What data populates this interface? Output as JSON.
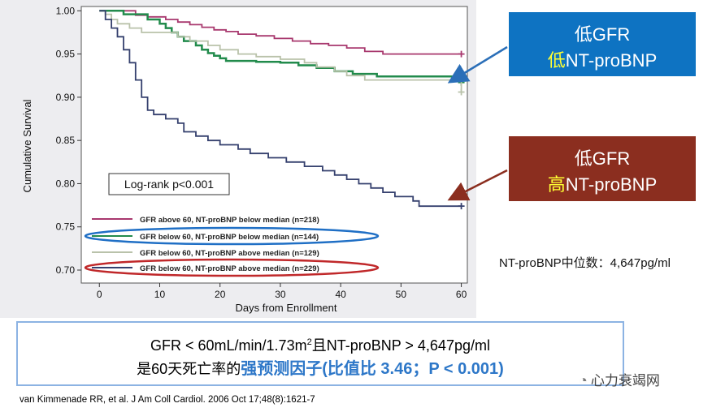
{
  "chart_data": {
    "type": "line",
    "title": "",
    "xlabel": "Days from Enrollment",
    "ylabel": "Cumulative Survival",
    "xlim": [
      -3,
      61
    ],
    "ylim": [
      0.685,
      1.005
    ],
    "x_ticks": [
      0,
      10,
      20,
      30,
      40,
      50,
      60
    ],
    "y_ticks": [
      0.7,
      0.75,
      0.8,
      0.85,
      0.9,
      0.95,
      1.0
    ],
    "x_tick_labels": [
      "0",
      "10",
      "20",
      "30",
      "40",
      "50",
      "60"
    ],
    "y_tick_labels": [
      "0.70",
      "0.75",
      "0.80",
      "0.85",
      "0.90",
      "0.95",
      "1.00"
    ],
    "grid": false,
    "legend_position": "bottom-left",
    "annotation": "Log-rank p<0.001",
    "series": [
      {
        "name": "GFR above 60, NT-proBNP below median (n=218)",
        "color": "#a8386e",
        "points": [
          [
            0,
            1.0
          ],
          [
            3,
            1.0
          ],
          [
            6,
            0.995
          ],
          [
            8,
            0.993
          ],
          [
            11,
            0.99
          ],
          [
            13,
            0.987
          ],
          [
            15,
            0.984
          ],
          [
            17,
            0.981
          ],
          [
            19,
            0.978
          ],
          [
            21,
            0.976
          ],
          [
            23,
            0.973
          ],
          [
            26,
            0.971
          ],
          [
            29,
            0.968
          ],
          [
            32,
            0.965
          ],
          [
            35,
            0.962
          ],
          [
            38,
            0.96
          ],
          [
            41,
            0.957
          ],
          [
            44,
            0.953
          ],
          [
            47,
            0.95
          ],
          [
            52,
            0.95
          ],
          [
            60,
            0.95
          ]
        ]
      },
      {
        "name": "GFR below 60, NT-proBNP below median (n=144)",
        "color": "#228b4c",
        "points": [
          [
            0,
            1.0
          ],
          [
            4,
            0.996
          ],
          [
            8,
            0.99
          ],
          [
            10,
            0.985
          ],
          [
            11,
            0.98
          ],
          [
            12,
            0.975
          ],
          [
            13,
            0.97
          ],
          [
            14,
            0.965
          ],
          [
            16,
            0.96
          ],
          [
            17,
            0.955
          ],
          [
            18,
            0.951
          ],
          [
            19,
            0.948
          ],
          [
            20,
            0.945
          ],
          [
            21,
            0.942
          ],
          [
            26,
            0.941
          ],
          [
            30,
            0.94
          ],
          [
            33,
            0.937
          ],
          [
            36,
            0.934
          ],
          [
            39,
            0.93
          ],
          [
            42,
            0.927
          ],
          [
            46,
            0.924
          ],
          [
            58,
            0.924
          ],
          [
            60,
            0.917
          ]
        ]
      },
      {
        "name": "GFR below 60, NT-proBNP above median (n=129)",
        "color": "#b9c2aa",
        "points": [
          [
            0,
            1.0
          ],
          [
            1,
            0.996
          ],
          [
            2,
            0.99
          ],
          [
            3,
            0.985
          ],
          [
            5,
            0.98
          ],
          [
            7,
            0.975
          ],
          [
            11,
            0.975
          ],
          [
            13,
            0.97
          ],
          [
            15,
            0.965
          ],
          [
            18,
            0.96
          ],
          [
            20,
            0.955
          ],
          [
            23,
            0.95
          ],
          [
            26,
            0.947
          ],
          [
            30,
            0.944
          ],
          [
            34,
            0.94
          ],
          [
            36,
            0.935
          ],
          [
            39,
            0.93
          ],
          [
            41,
            0.925
          ],
          [
            44,
            0.92
          ],
          [
            57,
            0.92
          ],
          [
            60,
            0.906
          ]
        ]
      },
      {
        "name": "GFR below 60, NT-proBNP above median (n=229)",
        "color": "#35406e",
        "points": [
          [
            0,
            1.0
          ],
          [
            1,
            0.99
          ],
          [
            2,
            0.98
          ],
          [
            3,
            0.97
          ],
          [
            4,
            0.955
          ],
          [
            5,
            0.94
          ],
          [
            6,
            0.92
          ],
          [
            7,
            0.9
          ],
          [
            8,
            0.885
          ],
          [
            9,
            0.88
          ],
          [
            11,
            0.875
          ],
          [
            13,
            0.87
          ],
          [
            14,
            0.86
          ],
          [
            16,
            0.855
          ],
          [
            18,
            0.85
          ],
          [
            20,
            0.845
          ],
          [
            23,
            0.84
          ],
          [
            25,
            0.835
          ],
          [
            28,
            0.83
          ],
          [
            31,
            0.825
          ],
          [
            34,
            0.82
          ],
          [
            37,
            0.815
          ],
          [
            39,
            0.81
          ],
          [
            41,
            0.805
          ],
          [
            43,
            0.8
          ],
          [
            45,
            0.795
          ],
          [
            47,
            0.79
          ],
          [
            49,
            0.785
          ],
          [
            52,
            0.78
          ],
          [
            53,
            0.774
          ],
          [
            58,
            0.774
          ],
          [
            60,
            0.774
          ]
        ]
      }
    ]
  },
  "callouts": {
    "low": {
      "line1": "低GFR",
      "prefix": "低",
      "suffix": "NT-proBNP"
    },
    "high": {
      "line1": "低GFR",
      "prefix": "高",
      "suffix": "NT-proBNP"
    }
  },
  "median_note": "NT-proBNP中位数：4,647pg/ml",
  "summary": {
    "line1_part1": "GFR < 60mL/min/1.73m",
    "line1_sup": "2",
    "line1_part2": "且NT-proBNP > 4,647pg/ml",
    "line2_plain": "是60天死亡率的",
    "line2_emph": "强预测因子(比值比 3.46；P < 0.001)"
  },
  "citation": "van Kimmenade RR,  et al. J Am Coll Cardiol. 2006 Oct 17;48(8):1621-7",
  "watermark": "心力衰竭网",
  "colors": {
    "callout_low_bg": "#0e73c2",
    "callout_high_bg": "#8b2e1f",
    "highlight_text": "#ffff33",
    "ellipse_blue": "#1f6fc5",
    "ellipse_red": "#c0282a",
    "arrow_blue": "#2b6fb8",
    "arrow_red": "#8b2e1f"
  }
}
